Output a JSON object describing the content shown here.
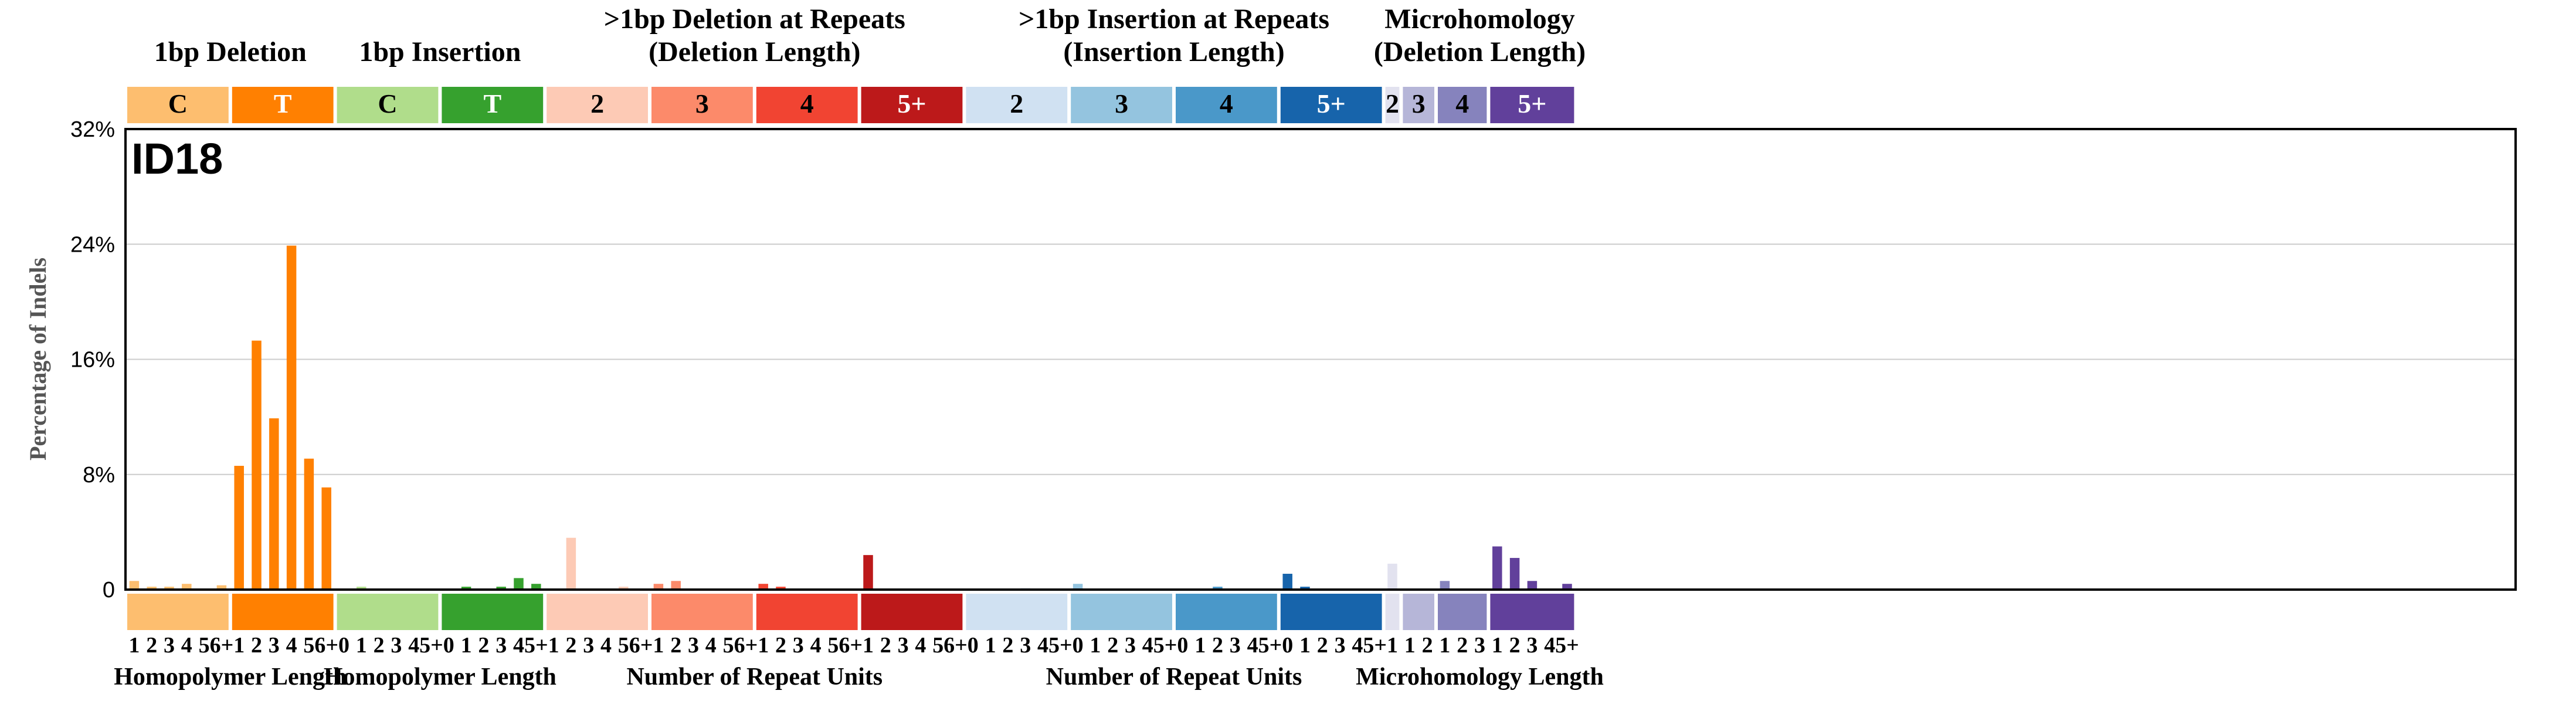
{
  "chart_data": {
    "type": "bar",
    "title": "ID18",
    "ylabel": "Percentage of Indels",
    "ylim": [
      0,
      32
    ],
    "yticks": [
      "0",
      "8%",
      "16%",
      "24%",
      "32%"
    ],
    "grid": true,
    "groups": [
      {
        "label": "1bp Deletion",
        "subgroups": [
          {
            "name": "C",
            "color": "#FDBE6F",
            "text_color": "#000000",
            "ticks": [
              "1",
              "2",
              "3",
              "4",
              "5",
              "6+"
            ],
            "values": [
              0.6,
              0.2,
              0.2,
              0.4,
              0.0,
              0.3
            ]
          },
          {
            "name": "T",
            "color": "#FF8001",
            "text_color": "#FFFFFF",
            "ticks": [
              "1",
              "2",
              "3",
              "4",
              "5",
              "6+"
            ],
            "values": [
              8.6,
              17.3,
              11.9,
              23.9,
              9.1,
              7.1
            ]
          }
        ],
        "xlabel": "Homopolymer Length"
      },
      {
        "label": "1bp Insertion",
        "subgroups": [
          {
            "name": "C",
            "color": "#B0DD8B",
            "text_color": "#000000",
            "ticks": [
              "0",
              "1",
              "2",
              "3",
              "4",
              "5+"
            ],
            "values": [
              0.0,
              0.2,
              0.0,
              0.0,
              0.0,
              0.0
            ]
          },
          {
            "name": "T",
            "color": "#36A12E",
            "text_color": "#FFFFFF",
            "ticks": [
              "0",
              "1",
              "2",
              "3",
              "4",
              "5+"
            ],
            "values": [
              0.0,
              0.2,
              0.0,
              0.2,
              0.8,
              0.4
            ]
          }
        ],
        "xlabel": "Homopolymer Length"
      },
      {
        "label": ">1bp Deletion at Repeats\n(Deletion Length)",
        "subgroups": [
          {
            "name": "2",
            "color": "#FDCAB5",
            "text_color": "#000000",
            "ticks": [
              "1",
              "2",
              "3",
              "4",
              "5",
              "6+"
            ],
            "values": [
              0.0,
              3.6,
              0.0,
              0.0,
              0.2,
              0.0
            ]
          },
          {
            "name": "3",
            "color": "#FC8A6A",
            "text_color": "#000000",
            "ticks": [
              "1",
              "2",
              "3",
              "4",
              "5",
              "6+"
            ],
            "values": [
              0.4,
              0.6,
              0.0,
              0.0,
              0.0,
              0.0
            ]
          },
          {
            "name": "4",
            "color": "#F14432",
            "text_color": "#000000",
            "ticks": [
              "1",
              "2",
              "3",
              "4",
              "5",
              "6+"
            ],
            "values": [
              0.4,
              0.2,
              0.0,
              0.0,
              0.0,
              0.0
            ]
          },
          {
            "name": "5+",
            "color": "#BC191A",
            "text_color": "#FFFFFF",
            "ticks": [
              "1",
              "2",
              "3",
              "4",
              "5",
              "6+"
            ],
            "values": [
              2.4,
              0.0,
              0.0,
              0.0,
              0.0,
              0.0
            ]
          }
        ],
        "xlabel": "Number of Repeat Units"
      },
      {
        "label": ">1bp Insertion at Repeats\n(Insertion Length)",
        "subgroups": [
          {
            "name": "2",
            "color": "#D0E1F2",
            "text_color": "#000000",
            "ticks": [
              "0",
              "1",
              "2",
              "3",
              "4",
              "5+"
            ],
            "values": [
              0.0,
              0.0,
              0.0,
              0.1,
              0.0,
              0.0
            ]
          },
          {
            "name": "3",
            "color": "#94C4DF",
            "text_color": "#000000",
            "ticks": [
              "0",
              "1",
              "2",
              "3",
              "4",
              "5+"
            ],
            "values": [
              0.4,
              0.0,
              0.0,
              0.0,
              0.0,
              0.0
            ]
          },
          {
            "name": "4",
            "color": "#4A98C9",
            "text_color": "#000000",
            "ticks": [
              "0",
              "1",
              "2",
              "3",
              "4",
              "5+"
            ],
            "values": [
              0.0,
              0.0,
              0.2,
              0.0,
              0.0,
              0.0
            ]
          },
          {
            "name": "5+",
            "color": "#1764AB",
            "text_color": "#FFFFFF",
            "ticks": [
              "0",
              "1",
              "2",
              "3",
              "4",
              "5+"
            ],
            "values": [
              1.1,
              0.2,
              0.0,
              0.0,
              0.0,
              0.0
            ]
          }
        ],
        "xlabel": "Number of Repeat Units"
      },
      {
        "label": "Microhomology\n(Deletion Length)",
        "subgroups": [
          {
            "name": "2",
            "color": "#E2E2EF",
            "text_color": "#000000",
            "ticks": [
              "1"
            ],
            "values": [
              1.8
            ]
          },
          {
            "name": "3",
            "color": "#B6B6D8",
            "text_color": "#000000",
            "ticks": [
              "1",
              "2"
            ],
            "values": [
              0.0,
              0.0
            ]
          },
          {
            "name": "4",
            "color": "#8683BD",
            "text_color": "#000000",
            "ticks": [
              "1",
              "2",
              "3"
            ],
            "values": [
              0.6,
              0.0,
              0.0
            ]
          },
          {
            "name": "5+",
            "color": "#61409B",
            "text_color": "#FFFFFF",
            "ticks": [
              "1",
              "2",
              "3",
              "4",
              "5+"
            ],
            "values": [
              3.0,
              2.2,
              0.6,
              0.0,
              0.4
            ]
          }
        ],
        "xlabel": "Microhomology Length"
      }
    ]
  }
}
